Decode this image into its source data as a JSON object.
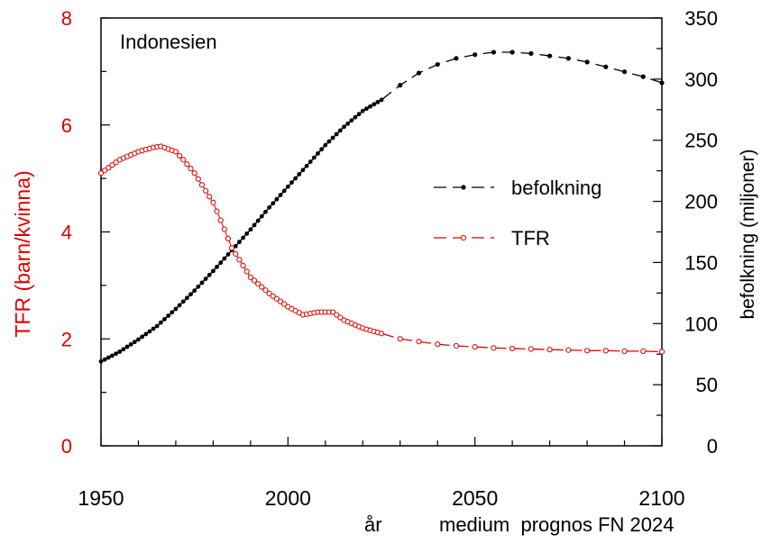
{
  "colors": {
    "tfr": "#e00000",
    "population": "#000000",
    "axis": "#000000"
  },
  "chart_data": {
    "type": "line",
    "title": "Indonesien",
    "xlabel": "år",
    "footnote": "medium  prognos FN 2024",
    "ylabel_left": "TFR (barn/kvinna)",
    "ylabel_right": "befolkning (miljoner)",
    "xlim": [
      1950,
      2100
    ],
    "ylim_left": [
      0,
      8
    ],
    "ylim_right": [
      0,
      350
    ],
    "x_ticks": [
      "1950",
      "2000",
      "2050",
      "2100"
    ],
    "y_ticks_left": [
      "0",
      "2",
      "4",
      "6",
      "8"
    ],
    "y_ticks_right": [
      "0",
      "50",
      "100",
      "150",
      "200",
      "250",
      "300",
      "350"
    ],
    "legend": {
      "position": "right-middle",
      "entries": [
        "befolkning",
        "TFR"
      ]
    },
    "series": [
      {
        "name": "befolkning",
        "axis": "right",
        "marker": "filled-dot",
        "history_end": 2025,
        "x": [
          1950,
          1955,
          1960,
          1965,
          1970,
          1975,
          1980,
          1985,
          1990,
          1995,
          2000,
          2005,
          2010,
          2015,
          2020,
          2025,
          2030,
          2035,
          2040,
          2045,
          2050,
          2055,
          2060,
          2065,
          2070,
          2075,
          2080,
          2085,
          2090,
          2095,
          2100
        ],
        "y": [
          69,
          77,
          87,
          98,
          112,
          127,
          143,
          160,
          177,
          195,
          212,
          229,
          246,
          261,
          274,
          283,
          295,
          305,
          312,
          317,
          320,
          322,
          322,
          321,
          319,
          317,
          314,
          310,
          306,
          302,
          297
        ]
      },
      {
        "name": "TFR",
        "axis": "left",
        "marker": "open-circle",
        "history_end": 2025,
        "x": [
          1950,
          1955,
          1960,
          1964,
          1966,
          1970,
          1972,
          1975,
          1980,
          1983,
          1985,
          1990,
          1995,
          2000,
          2004,
          2008,
          2012,
          2015,
          2020,
          2025,
          2030,
          2035,
          2040,
          2045,
          2050,
          2055,
          2060,
          2065,
          2070,
          2075,
          2080,
          2085,
          2090,
          2095,
          2100
        ],
        "y": [
          5.1,
          5.35,
          5.5,
          5.58,
          5.6,
          5.5,
          5.35,
          5.1,
          4.55,
          4.05,
          3.7,
          3.15,
          2.85,
          2.6,
          2.45,
          2.5,
          2.5,
          2.35,
          2.2,
          2.1,
          2.0,
          1.95,
          1.9,
          1.87,
          1.85,
          1.83,
          1.82,
          1.81,
          1.8,
          1.79,
          1.78,
          1.78,
          1.77,
          1.77,
          1.76
        ]
      }
    ]
  }
}
